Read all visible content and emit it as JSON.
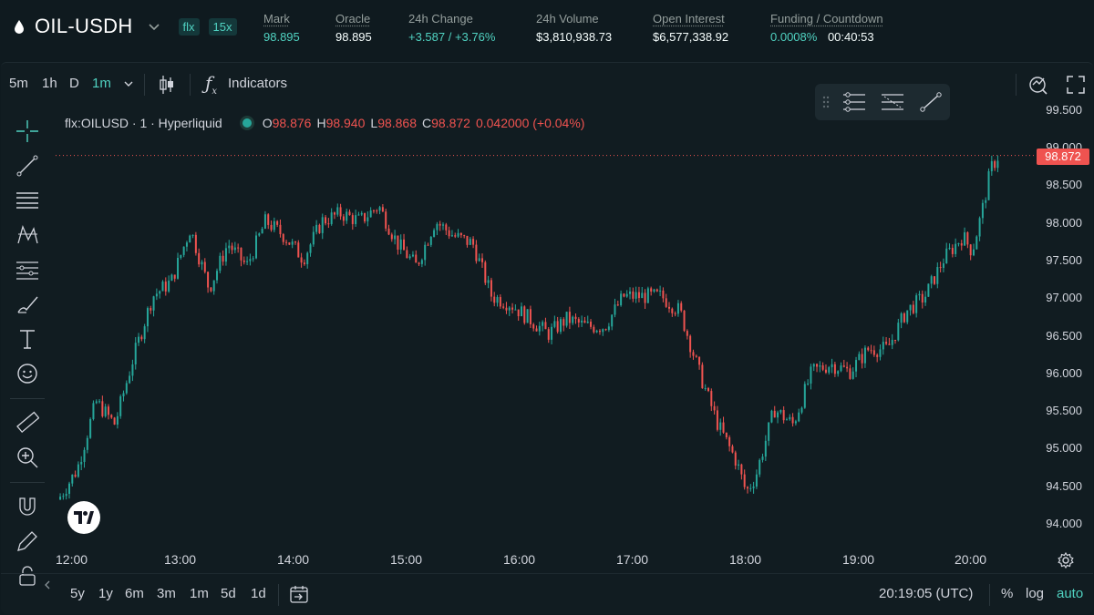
{
  "header": {
    "pair": "OIL-USDH",
    "tags": [
      "flx",
      "15x"
    ],
    "stats": [
      {
        "label": "Mark",
        "value": "98.895",
        "green": true
      },
      {
        "label": "Oracle",
        "value": "98.895",
        "green": false
      },
      {
        "label": "24h Change",
        "value": "+3.587 / +3.76%",
        "green": true
      },
      {
        "label": "24h Volume",
        "value": "$3,810,938.73",
        "green": false
      },
      {
        "label": "Open Interest",
        "value": "$6,577,338.92",
        "green": false
      },
      {
        "label": "Funding / Countdown",
        "value": "0.0008%",
        "value2": "00:40:53",
        "green": true
      }
    ]
  },
  "toolbar": {
    "intervals": [
      "5m",
      "1h",
      "D",
      "1m"
    ],
    "active_interval": "1m",
    "indicators_label": "Indicators"
  },
  "legend": {
    "symbol": "flx:OILUSD · 1 · Hyperliquid",
    "o_label": "O",
    "o": "98.876",
    "h_label": "H",
    "h": "98.940",
    "l_label": "L",
    "l": "98.868",
    "c_label": "C",
    "c": "98.872",
    "change": "0.042000 (+0.04%)"
  },
  "price_scale": [
    "99.500",
    "99.000",
    "98.500",
    "98.000",
    "97.500",
    "97.000",
    "96.500",
    "96.000",
    "95.500",
    "95.000",
    "94.500",
    "94.000"
  ],
  "current_price": "98.872",
  "time_scale": [
    "12:00",
    "13:00",
    "14:00",
    "15:00",
    "16:00",
    "17:00",
    "18:00",
    "19:00",
    "20:00"
  ],
  "bottom": {
    "ranges": [
      "5y",
      "1y",
      "6m",
      "3m",
      "1m",
      "5d",
      "1d"
    ],
    "clock": "20:19:05 (UTC)",
    "percent": "%",
    "log": "log",
    "auto": "auto"
  },
  "colors": {
    "up": "#26a69a",
    "down": "#ef5350",
    "accent": "#50d2c1",
    "background": "#111c21"
  },
  "chart_data": {
    "type": "candlestick",
    "title": "flx:OILUSD · 1 · Hyperliquid",
    "x_range": [
      "12:00",
      "20:20"
    ],
    "ylim": [
      94.0,
      99.5
    ],
    "grid": false,
    "waypoints": [
      [
        "12:00",
        94.3
      ],
      [
        "12:10",
        94.7
      ],
      [
        "12:20",
        95.6
      ],
      [
        "12:30",
        95.3
      ],
      [
        "12:40",
        96.2
      ],
      [
        "12:50",
        97.0
      ],
      [
        "13:00",
        97.2
      ],
      [
        "13:10",
        97.9
      ],
      [
        "13:20",
        97.1
      ],
      [
        "13:30",
        97.7
      ],
      [
        "13:40",
        97.4
      ],
      [
        "13:50",
        98.0
      ],
      [
        "14:00",
        97.8
      ],
      [
        "14:10",
        97.5
      ],
      [
        "14:20",
        98.0
      ],
      [
        "14:30",
        98.1
      ],
      [
        "14:40",
        98.0
      ],
      [
        "14:50",
        98.2
      ],
      [
        "15:00",
        97.7
      ],
      [
        "15:10",
        97.4
      ],
      [
        "15:20",
        98.0
      ],
      [
        "15:30",
        97.8
      ],
      [
        "15:40",
        97.7
      ],
      [
        "15:50",
        97.0
      ],
      [
        "16:00",
        96.9
      ],
      [
        "16:10",
        96.7
      ],
      [
        "16:20",
        96.5
      ],
      [
        "16:30",
        96.7
      ],
      [
        "16:40",
        96.6
      ],
      [
        "16:50",
        96.6
      ],
      [
        "17:00",
        97.0
      ],
      [
        "17:10",
        97.0
      ],
      [
        "17:20",
        97.0
      ],
      [
        "17:30",
        96.8
      ],
      [
        "17:40",
        96.0
      ],
      [
        "17:50",
        95.3
      ],
      [
        "18:00",
        94.8
      ],
      [
        "18:05",
        94.4
      ],
      [
        "18:10",
        94.6
      ],
      [
        "18:20",
        95.5
      ],
      [
        "18:30",
        95.3
      ],
      [
        "18:40",
        96.0
      ],
      [
        "18:50",
        96.1
      ],
      [
        "19:00",
        96.0
      ],
      [
        "19:10",
        96.3
      ],
      [
        "19:20",
        96.3
      ],
      [
        "19:30",
        96.8
      ],
      [
        "19:40",
        97.0
      ],
      [
        "19:50",
        97.5
      ],
      [
        "20:00",
        97.8
      ],
      [
        "20:05",
        97.6
      ],
      [
        "20:10",
        98.1
      ],
      [
        "20:15",
        98.7
      ],
      [
        "20:19",
        98.87
      ]
    ]
  }
}
